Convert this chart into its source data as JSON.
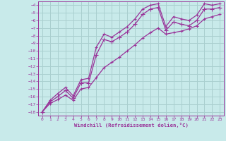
{
  "xlabel": "Windchill (Refroidissement éolien,°C)",
  "bg_color": "#c8eaea",
  "grid_color": "#aacfcf",
  "line_color": "#993399",
  "x": [
    0,
    1,
    2,
    3,
    4,
    5,
    6,
    7,
    8,
    9,
    10,
    11,
    12,
    13,
    14,
    15,
    16,
    17,
    18,
    19,
    20,
    21,
    22,
    23
  ],
  "y_main": [
    -18,
    -16.7,
    -16.0,
    -15.2,
    -16.2,
    -14.2,
    -14.2,
    -10.5,
    -8.5,
    -8.8,
    -8.2,
    -7.5,
    -6.5,
    -5.2,
    -4.5,
    -4.3,
    -7.3,
    -6.2,
    -6.5,
    -6.7,
    -6.0,
    -4.5,
    -4.5,
    -4.3
  ],
  "y_low": [
    -18,
    -16.9,
    -16.4,
    -15.8,
    -16.5,
    -15.0,
    -14.8,
    -13.5,
    -12.2,
    -11.5,
    -10.8,
    -10.0,
    -9.2,
    -8.3,
    -7.6,
    -7.0,
    -7.8,
    -7.6,
    -7.4,
    -7.1,
    -6.7,
    -5.8,
    -5.5,
    -5.2
  ],
  "y_high": [
    -18,
    -16.5,
    -15.6,
    -14.8,
    -15.9,
    -13.8,
    -13.6,
    -9.5,
    -7.8,
    -8.2,
    -7.5,
    -6.8,
    -5.8,
    -4.5,
    -4.0,
    -3.8,
    -6.8,
    -5.5,
    -5.8,
    -6.0,
    -5.3,
    -3.8,
    -4.0,
    -3.8
  ],
  "ylim": [
    -18.5,
    -3.5
  ],
  "xlim": [
    -0.5,
    23.5
  ],
  "yticks": [
    -18,
    -17,
    -16,
    -15,
    -14,
    -13,
    -12,
    -11,
    -10,
    -9,
    -8,
    -7,
    -6,
    -5,
    -4
  ],
  "xticks": [
    0,
    1,
    2,
    3,
    4,
    5,
    6,
    7,
    8,
    9,
    10,
    11,
    12,
    13,
    14,
    15,
    16,
    17,
    18,
    19,
    20,
    21,
    22,
    23
  ]
}
